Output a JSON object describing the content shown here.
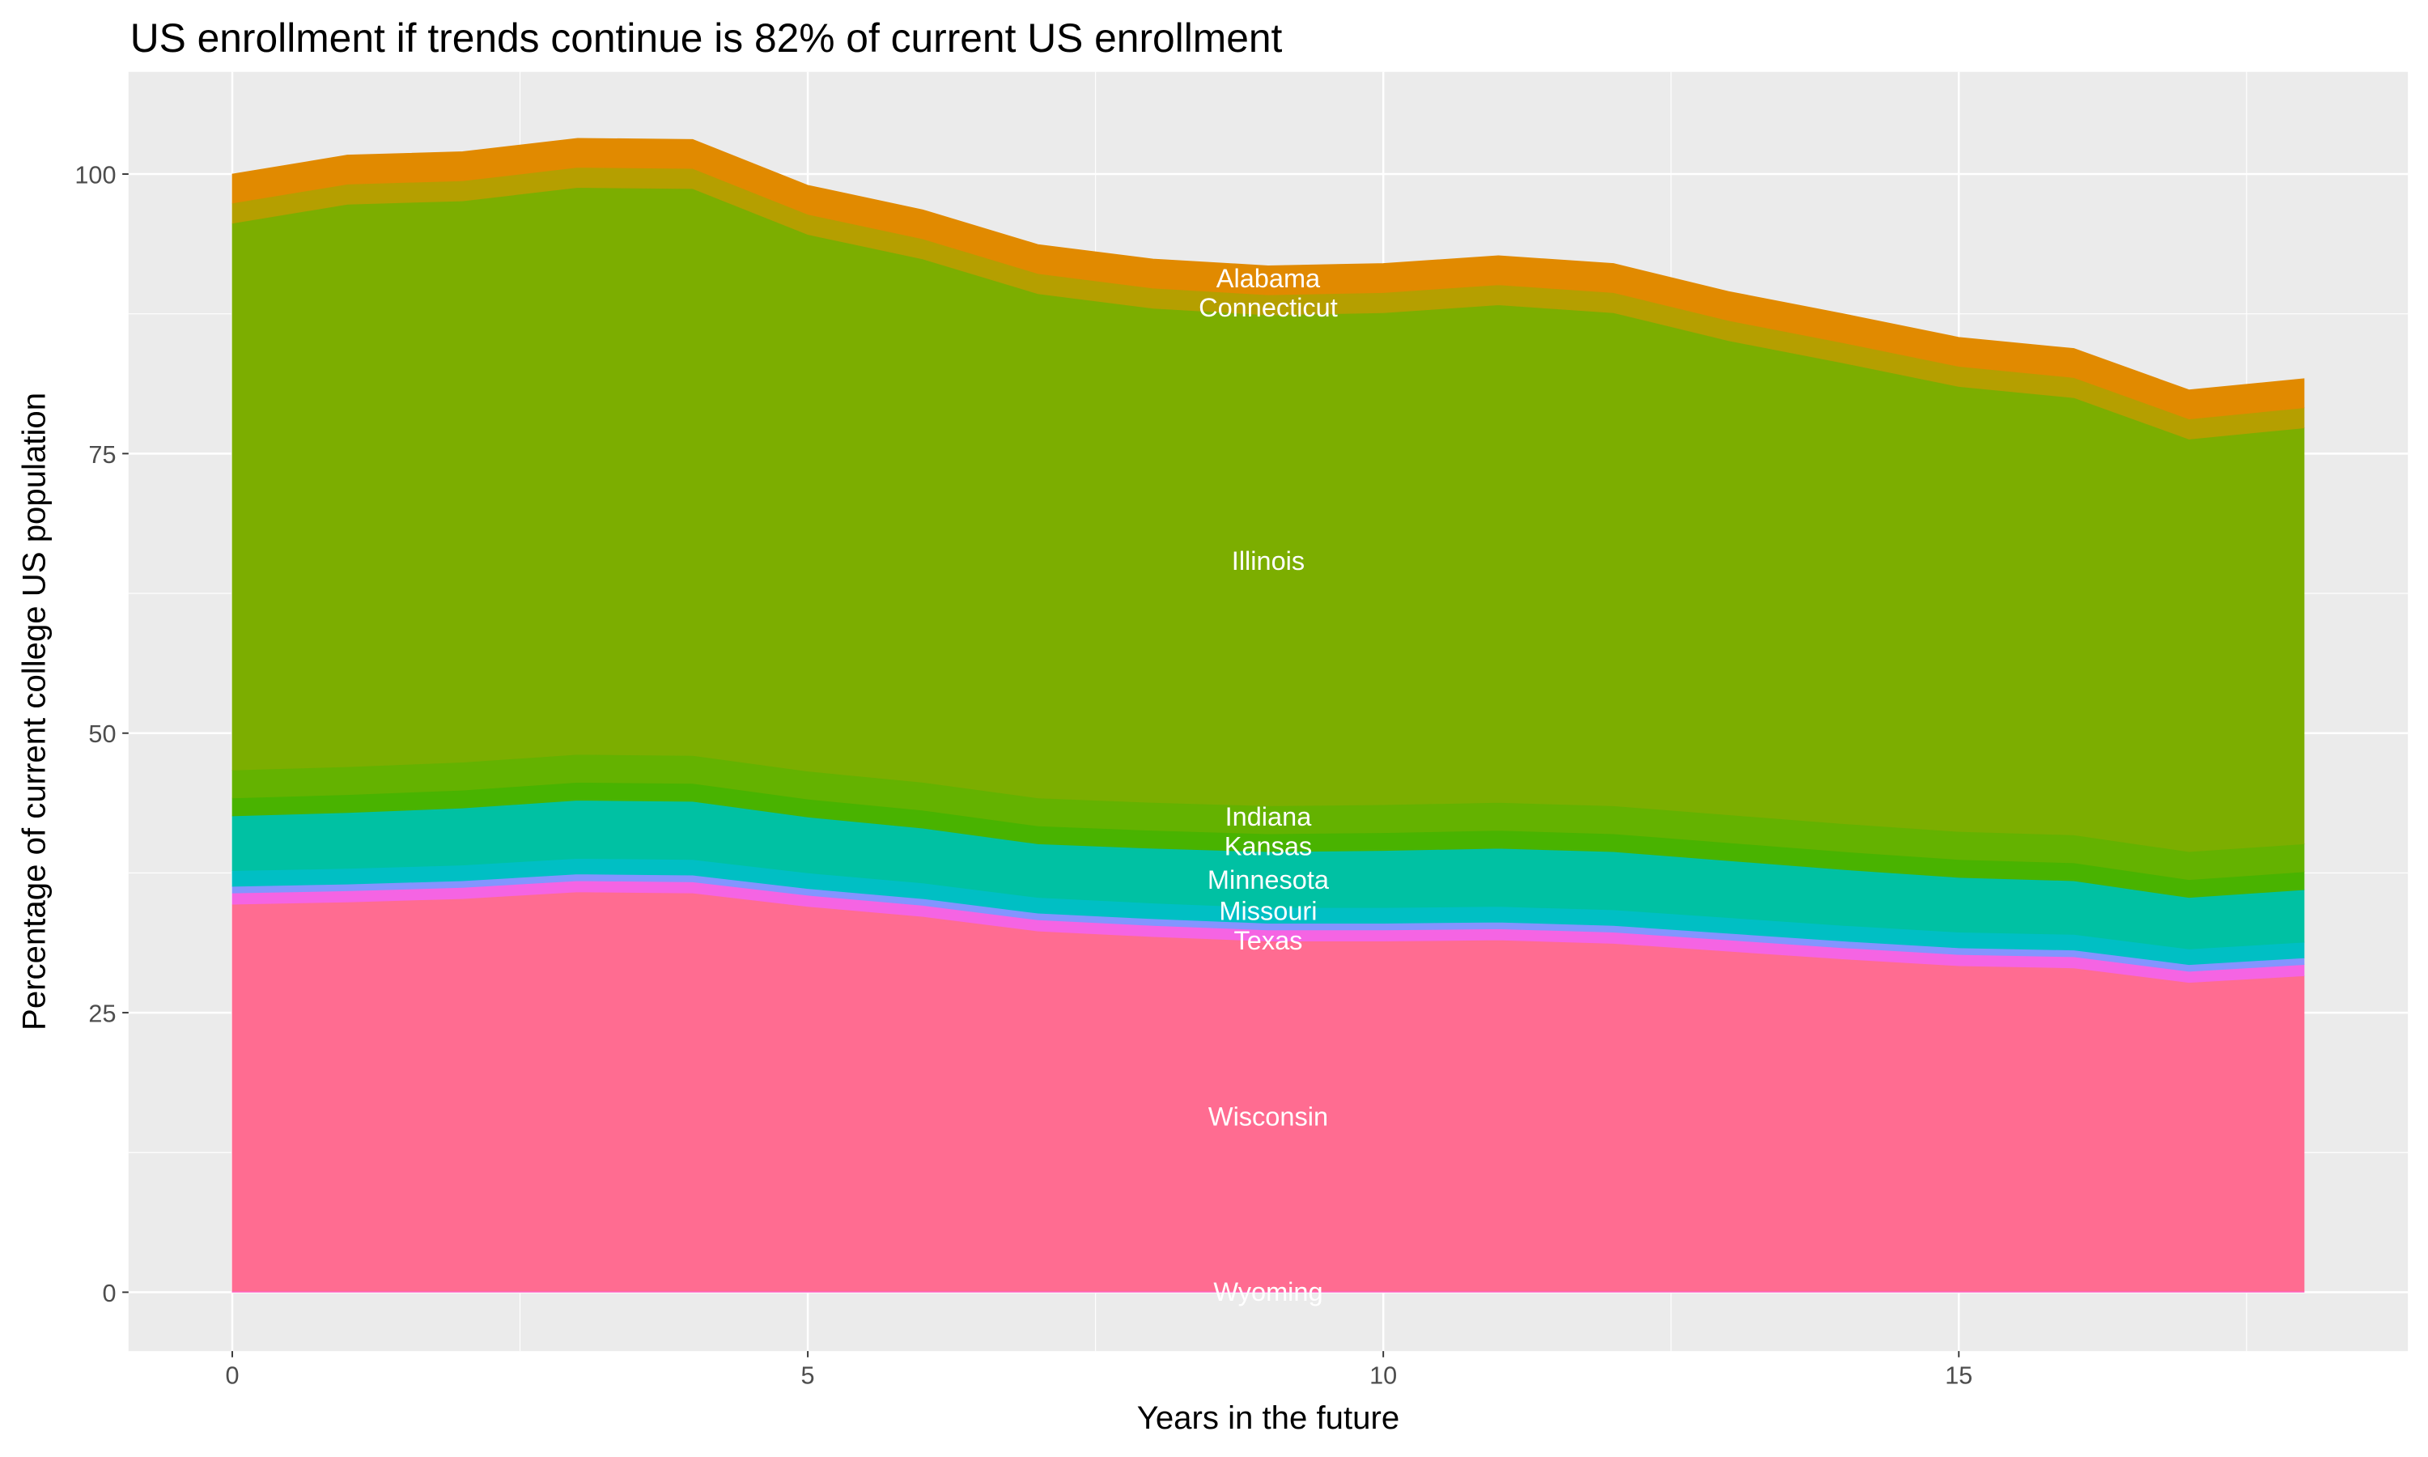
{
  "chart_data": {
    "type": "area",
    "stacked": true,
    "title": "US enrollment if trends continue is 82% of current US enrollment",
    "xlabel": "Years in the future",
    "ylabel": "Percentage of current college US population",
    "xlim": [
      0,
      18
    ],
    "ylim": [
      -5,
      107
    ],
    "xticks": [
      0,
      5,
      10,
      15
    ],
    "yticks": [
      0,
      25,
      50,
      75,
      100
    ],
    "grid": true,
    "label_x": 9,
    "x": [
      0,
      1,
      2,
      3,
      4,
      5,
      6,
      7,
      8,
      9,
      10,
      11,
      12,
      13,
      14,
      15,
      16,
      17,
      18
    ],
    "series": [
      {
        "name": "Wyoming",
        "color": "#FF61C3",
        "values": [
          0.1,
          0.1,
          0.1,
          0.1,
          0.1,
          0.1,
          0.1,
          0.1,
          0.1,
          0.1,
          0.1,
          0.1,
          0.1,
          0.1,
          0.1,
          0.1,
          0.1,
          0.1,
          0.1
        ]
      },
      {
        "name": "Wisconsin",
        "color": "#FF6C91",
        "values": [
          34.6,
          34.8,
          35.1,
          35.7,
          35.6,
          34.4,
          33.5,
          32.2,
          31.7,
          31.3,
          31.3,
          31.4,
          31.1,
          30.4,
          29.7,
          29.1,
          28.9,
          27.6,
          28.2
        ]
      },
      {
        "name": "Texas",
        "color": "#F564E3",
        "values": [
          1.0,
          1.0,
          1.0,
          1.0,
          1.0,
          1.0,
          1.0,
          1.0,
          1.0,
          1.0,
          1.0,
          1.0,
          1.0,
          1.0,
          1.0,
          1.0,
          1.0,
          1.0,
          1.0
        ]
      },
      {
        "color": "#8494FF",
        "values": [
          0.6,
          0.6,
          0.6,
          0.6,
          0.6,
          0.6,
          0.6,
          0.6,
          0.6,
          0.6,
          0.6,
          0.6,
          0.6,
          0.6,
          0.6,
          0.6,
          0.6,
          0.6,
          0.6
        ]
      },
      {
        "name": "Missouri",
        "color": "#00BFC4",
        "values": [
          1.4,
          1.4,
          1.4,
          1.4,
          1.4,
          1.4,
          1.4,
          1.4,
          1.4,
          1.4,
          1.4,
          1.4,
          1.4,
          1.4,
          1.4,
          1.4,
          1.4,
          1.4,
          1.4
        ]
      },
      {
        "name": "Minnesota",
        "color": "#00C1A3",
        "values": [
          4.9,
          5.0,
          5.1,
          5.2,
          5.2,
          5.0,
          4.9,
          4.8,
          4.9,
          5.0,
          5.1,
          5.2,
          5.2,
          5.1,
          5.0,
          4.9,
          4.8,
          4.6,
          4.7
        ]
      },
      {
        "name": "Kansas",
        "color": "#49B300",
        "values": [
          1.6,
          1.6,
          1.6,
          1.6,
          1.6,
          1.6,
          1.6,
          1.6,
          1.6,
          1.6,
          1.6,
          1.6,
          1.6,
          1.6,
          1.6,
          1.6,
          1.6,
          1.6,
          1.6
        ]
      },
      {
        "name": "Indiana",
        "color": "#64B200",
        "values": [
          2.5,
          2.5,
          2.5,
          2.5,
          2.5,
          2.5,
          2.5,
          2.5,
          2.5,
          2.5,
          2.5,
          2.5,
          2.5,
          2.5,
          2.5,
          2.5,
          2.5,
          2.5,
          2.5
        ]
      },
      {
        "name": "Illinois",
        "color": "#7CAE00",
        "values": [
          48.9,
          50.3,
          50.2,
          50.7,
          50.7,
          48.0,
          46.8,
          45.1,
          44.2,
          43.9,
          44.0,
          44.5,
          44.1,
          42.4,
          41.2,
          39.8,
          39.1,
          36.9,
          37.2
        ]
      },
      {
        "name": "Connecticut",
        "color": "#B59F00",
        "values": [
          1.8,
          1.8,
          1.8,
          1.8,
          1.8,
          1.8,
          1.8,
          1.8,
          1.8,
          1.8,
          1.8,
          1.8,
          1.8,
          1.8,
          1.8,
          1.8,
          1.8,
          1.8,
          1.8
        ]
      },
      {
        "name": "Alabama",
        "color": "#E18A00",
        "values": [
          2.6,
          2.6,
          2.6,
          2.6,
          2.6,
          2.6,
          2.6,
          2.6,
          2.6,
          2.6,
          2.6,
          2.6,
          2.6,
          2.6,
          2.6,
          2.6,
          2.6,
          2.6,
          2.6
        ]
      }
    ]
  }
}
